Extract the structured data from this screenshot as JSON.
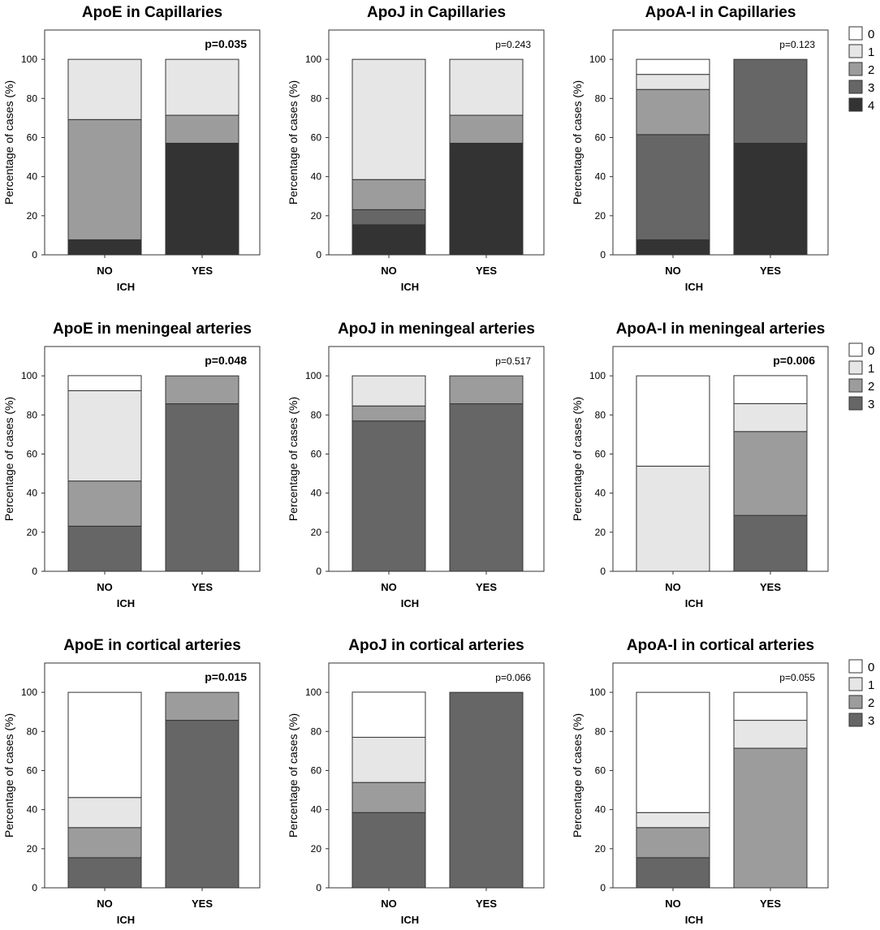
{
  "figure": {
    "colors": {
      "0": "#ffffff",
      "1": "#e6e6e6",
      "2": "#9c9c9c",
      "3": "#666666",
      "4": "#333333"
    },
    "legends": [
      {
        "row": 0,
        "entries": [
          "0",
          "1",
          "2",
          "3",
          "4"
        ]
      },
      {
        "row": 1,
        "entries": [
          "0",
          "1",
          "2",
          "3"
        ]
      },
      {
        "row": 2,
        "entries": [
          "0",
          "1",
          "2",
          "3"
        ]
      }
    ]
  },
  "chart_data": [
    {
      "type": "bar",
      "stacked": true,
      "title": "ApoE in Capillaries",
      "pvalue": "p=0.035",
      "pvalue_bold": true,
      "categories": [
        "NO",
        "YES"
      ],
      "xlabel": "ICH",
      "ylabel": "Percentage of cases (%)",
      "ylim": [
        0,
        115
      ],
      "yticks": [
        "0",
        "20",
        "40",
        "60",
        "80",
        "100"
      ],
      "series": [
        {
          "name": "4",
          "values": [
            7.7,
            57.1
          ]
        },
        {
          "name": "3",
          "values": [
            0,
            0
          ]
        },
        {
          "name": "2",
          "values": [
            61.5,
            14.3
          ]
        },
        {
          "name": "1",
          "values": [
            30.8,
            28.6
          ]
        },
        {
          "name": "0",
          "values": [
            0,
            0
          ]
        }
      ]
    },
    {
      "type": "bar",
      "stacked": true,
      "title": "ApoJ in Capillaries",
      "pvalue": "p=0.243",
      "pvalue_bold": false,
      "categories": [
        "NO",
        "YES"
      ],
      "xlabel": "ICH",
      "ylabel": "Percentage of cases (%)",
      "ylim": [
        0,
        115
      ],
      "yticks": [
        "0",
        "20",
        "40",
        "60",
        "80",
        "100"
      ],
      "series": [
        {
          "name": "4",
          "values": [
            15.4,
            57.1
          ]
        },
        {
          "name": "3",
          "values": [
            7.7,
            0
          ]
        },
        {
          "name": "2",
          "values": [
            15.4,
            14.3
          ]
        },
        {
          "name": "1",
          "values": [
            61.5,
            28.6
          ]
        },
        {
          "name": "0",
          "values": [
            0,
            0
          ]
        }
      ]
    },
    {
      "type": "bar",
      "stacked": true,
      "title": "ApoA-I in Capillaries",
      "pvalue": "p=0.123",
      "pvalue_bold": false,
      "categories": [
        "NO",
        "YES"
      ],
      "xlabel": "ICH",
      "ylabel": "Percentage of cases (%)",
      "ylim": [
        0,
        115
      ],
      "yticks": [
        "0",
        "20",
        "40",
        "60",
        "80",
        "100"
      ],
      "series": [
        {
          "name": "4",
          "values": [
            7.7,
            57.1
          ]
        },
        {
          "name": "3",
          "values": [
            53.8,
            42.9
          ]
        },
        {
          "name": "2",
          "values": [
            23.1,
            0
          ]
        },
        {
          "name": "1",
          "values": [
            7.7,
            0
          ]
        },
        {
          "name": "0",
          "values": [
            7.7,
            0
          ]
        }
      ]
    },
    {
      "type": "bar",
      "stacked": true,
      "title": "ApoE in meningeal arteries",
      "pvalue": "p=0.048",
      "pvalue_bold": true,
      "categories": [
        "NO",
        "YES"
      ],
      "xlabel": "ICH",
      "ylabel": "Percentage of cases (%)",
      "ylim": [
        0,
        115
      ],
      "yticks": [
        "0",
        "20",
        "40",
        "60",
        "80",
        "100"
      ],
      "series": [
        {
          "name": "3",
          "values": [
            23.1,
            85.7
          ]
        },
        {
          "name": "2",
          "values": [
            23.1,
            14.3
          ]
        },
        {
          "name": "1",
          "values": [
            46.2,
            0
          ]
        },
        {
          "name": "0",
          "values": [
            7.7,
            0
          ]
        }
      ]
    },
    {
      "type": "bar",
      "stacked": true,
      "title": "ApoJ in meningeal arteries",
      "pvalue": "p=0.517",
      "pvalue_bold": false,
      "categories": [
        "NO",
        "YES"
      ],
      "xlabel": "ICH",
      "ylabel": "Percentage of cases (%)",
      "ylim": [
        0,
        115
      ],
      "yticks": [
        "0",
        "20",
        "40",
        "60",
        "80",
        "100"
      ],
      "series": [
        {
          "name": "3",
          "values": [
            76.9,
            85.7
          ]
        },
        {
          "name": "2",
          "values": [
            7.7,
            14.3
          ]
        },
        {
          "name": "1",
          "values": [
            15.4,
            0
          ]
        },
        {
          "name": "0",
          "values": [
            0,
            0
          ]
        }
      ]
    },
    {
      "type": "bar",
      "stacked": true,
      "title": "ApoA-I in meningeal arteries",
      "pvalue": "p=0.006",
      "pvalue_bold": true,
      "categories": [
        "NO",
        "YES"
      ],
      "xlabel": "ICH",
      "ylabel": "Percentage of cases (%)",
      "ylim": [
        0,
        115
      ],
      "yticks": [
        "0",
        "20",
        "40",
        "60",
        "80",
        "100"
      ],
      "series": [
        {
          "name": "3",
          "values": [
            0,
            28.6
          ]
        },
        {
          "name": "2",
          "values": [
            0,
            42.9
          ]
        },
        {
          "name": "1",
          "values": [
            53.8,
            14.3
          ]
        },
        {
          "name": "0",
          "values": [
            46.2,
            14.3
          ]
        }
      ]
    },
    {
      "type": "bar",
      "stacked": true,
      "title": "ApoE in cortical arteries",
      "pvalue": "p=0.015",
      "pvalue_bold": true,
      "categories": [
        "NO",
        "YES"
      ],
      "xlabel": "ICH",
      "ylabel": "Percentage of cases (%)",
      "ylim": [
        0,
        115
      ],
      "yticks": [
        "0",
        "20",
        "40",
        "60",
        "80",
        "100"
      ],
      "series": [
        {
          "name": "3",
          "values": [
            15.4,
            85.7
          ]
        },
        {
          "name": "2",
          "values": [
            15.4,
            14.3
          ]
        },
        {
          "name": "1",
          "values": [
            15.4,
            0
          ]
        },
        {
          "name": "0",
          "values": [
            53.8,
            0
          ]
        }
      ]
    },
    {
      "type": "bar",
      "stacked": true,
      "title": "ApoJ in cortical arteries",
      "pvalue": "p=0.066",
      "pvalue_bold": false,
      "categories": [
        "NO",
        "YES"
      ],
      "xlabel": "ICH",
      "ylabel": "Percentage of cases (%)",
      "ylim": [
        0,
        115
      ],
      "yticks": [
        "0",
        "20",
        "40",
        "60",
        "80",
        "100"
      ],
      "series": [
        {
          "name": "3",
          "values": [
            38.5,
            100
          ]
        },
        {
          "name": "2",
          "values": [
            15.4,
            0
          ]
        },
        {
          "name": "1",
          "values": [
            23.1,
            0
          ]
        },
        {
          "name": "0",
          "values": [
            23.1,
            0
          ]
        }
      ]
    },
    {
      "type": "bar",
      "stacked": true,
      "title": "ApoA-I in cortical arteries",
      "pvalue": "p=0.055",
      "pvalue_bold": false,
      "categories": [
        "NO",
        "YES"
      ],
      "xlabel": "ICH",
      "ylabel": "Percentage of cases (%)",
      "ylim": [
        0,
        115
      ],
      "yticks": [
        "0",
        "20",
        "40",
        "60",
        "80",
        "100"
      ],
      "series": [
        {
          "name": "3",
          "values": [
            15.4,
            0
          ]
        },
        {
          "name": "2",
          "values": [
            15.4,
            71.4
          ]
        },
        {
          "name": "1",
          "values": [
            7.7,
            14.3
          ]
        },
        {
          "name": "0",
          "values": [
            61.5,
            14.3
          ]
        }
      ]
    }
  ]
}
